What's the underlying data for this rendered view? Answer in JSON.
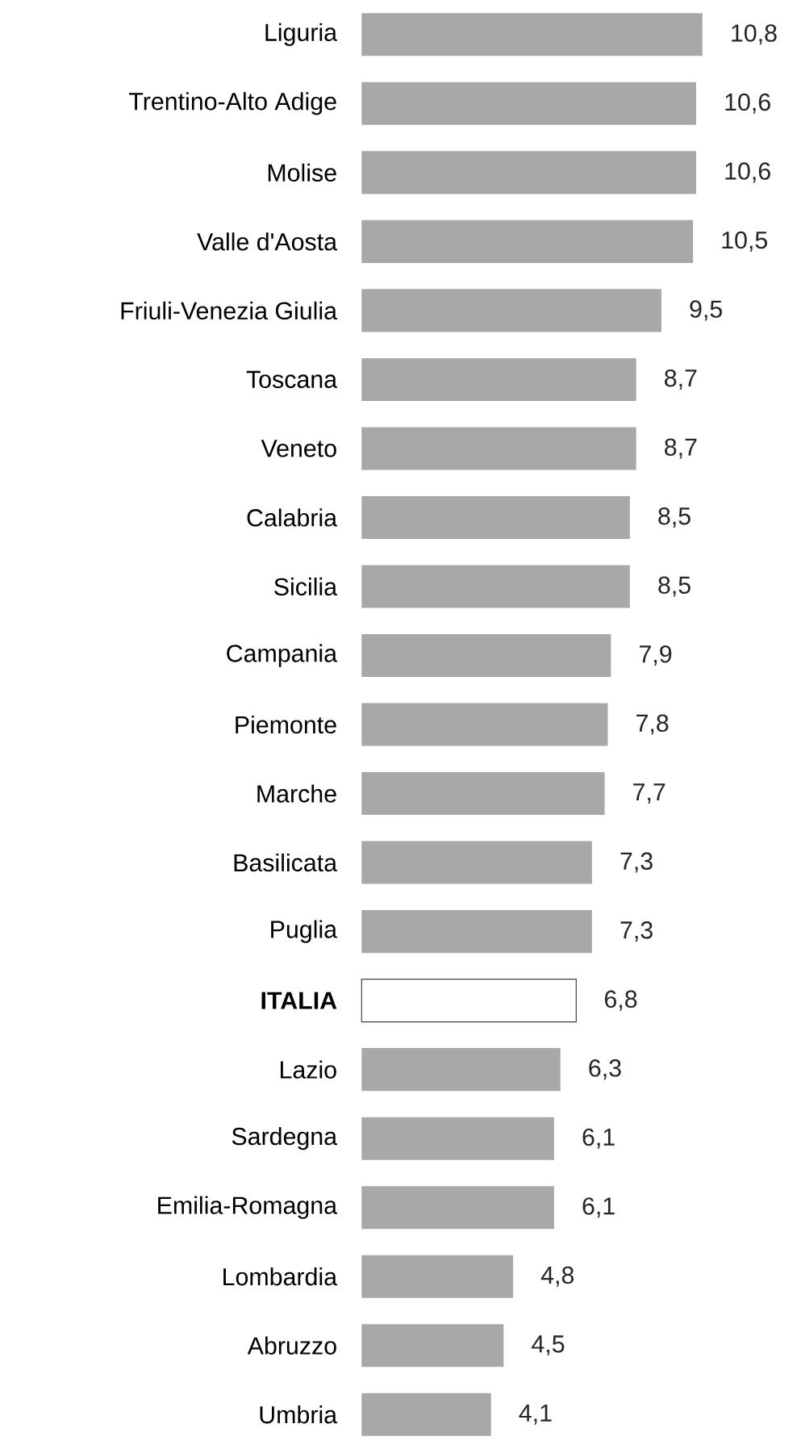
{
  "chart_data": {
    "type": "bar",
    "orientation": "horizontal",
    "categories": [
      "Liguria",
      "Trentino-Alto Adige",
      "Molise",
      "Valle d'Aosta",
      "Friuli-Venezia Giulia",
      "Toscana",
      "Veneto",
      "Calabria",
      "Sicilia",
      "Campania",
      "Piemonte",
      "Marche",
      "Basilicata",
      "Puglia",
      "**ITALIA**",
      "Lazio",
      "Sardegna",
      "Emilia-Romagna",
      "Lombardia",
      "Abruzzo",
      "Umbria"
    ],
    "values": [
      10.8,
      10.6,
      10.6,
      10.5,
      9.5,
      8.7,
      8.7,
      8.5,
      8.5,
      7.9,
      7.8,
      7.7,
      7.3,
      7.3,
      6.8,
      6.3,
      6.1,
      6.1,
      4.8,
      4.5,
      4.1
    ],
    "value_labels": [
      "10,8",
      "10,6",
      "10,6",
      "10,5",
      "9,5",
      "8,7",
      "8,7",
      "8,5",
      "8,5",
      "7,9",
      "7,8",
      "7,7",
      "7,3",
      "7,3",
      "6,8",
      "6,3",
      "6,1",
      "6,1",
      "4,8",
      "4,5",
      "4,1"
    ],
    "colors": [
      "#a7a8aa",
      "#a7a8aa",
      "#a7a8aa",
      "#a7a8aa",
      "#a7a8aa",
      "#a7a8aa",
      "#a7a8aa",
      "#a7a8aa",
      "#a7a8aa",
      "#a7a8aa",
      "#a7a8aa",
      "#a7a8aa",
      "#a7a8aa",
      "#a7a8aa",
      "#404040",
      "#a7a8aa",
      "#a7a8aa",
      "#a7a8aa",
      "#a7a8aa",
      "#a7a8aa",
      "#a7a8aa"
    ]
  }
}
